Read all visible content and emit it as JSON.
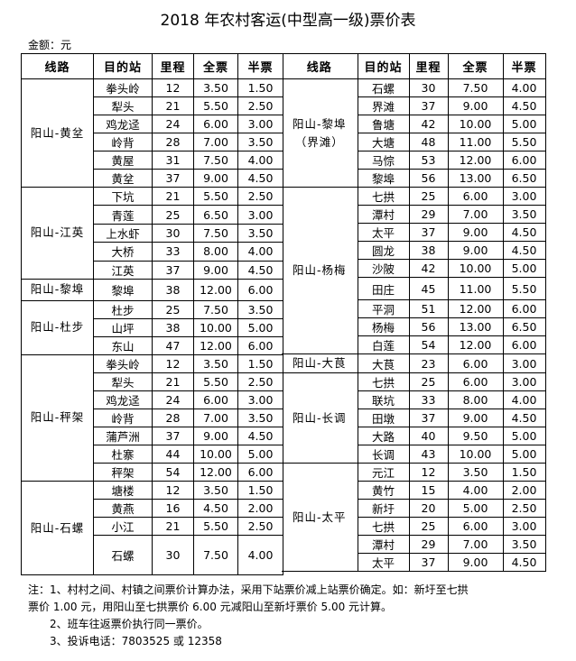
{
  "title": "2018 年农村客运(中型高一级)票价表",
  "unit_label": "金额：元",
  "headers": [
    "线路",
    "目的站",
    "里程",
    "全票",
    "半票"
  ],
  "left_table": [
    {
      "route": "阳山-黄坌",
      "stops": [
        [
          "拳头岭",
          "12",
          "3.50",
          "1.50"
        ],
        [
          "犁头",
          "21",
          "5.50",
          "2.50"
        ],
        [
          "鸡龙迳",
          "24",
          "6.00",
          "3.00"
        ],
        [
          "岭背",
          "28",
          "7.00",
          "3.50"
        ],
        [
          "黄屋",
          "31",
          "7.50",
          "4.00"
        ],
        [
          "黄坌",
          "37",
          "9.00",
          "4.50"
        ]
      ]
    },
    {
      "route": "阳山-江英",
      "stops": [
        [
          "下坑",
          "21",
          "5.50",
          "2.50"
        ],
        [
          "青莲",
          "25",
          "6.50",
          "3.00"
        ],
        [
          "上水虾",
          "30",
          "7.50",
          "3.50"
        ],
        [
          "大桥",
          "33",
          "8.00",
          "4.00"
        ],
        [
          "江英",
          "37",
          "9.00",
          "4.50"
        ]
      ]
    },
    {
      "route": "阳山-黎埠",
      "stops": [
        [
          "黎埠",
          "38",
          "12.00",
          "6.00"
        ]
      ]
    },
    {
      "route": "阳山-杜步",
      "stops": [
        [
          "杜步",
          "25",
          "7.50",
          "3.50"
        ],
        [
          "山坪",
          "38",
          "10.00",
          "5.00"
        ],
        [
          "东山",
          "47",
          "12.00",
          "6.00"
        ]
      ]
    },
    {
      "route": "阳山-秤架",
      "stops": [
        [
          "拳头岭",
          "12",
          "3.50",
          "1.50"
        ],
        [
          "犁头",
          "21",
          "5.50",
          "2.50"
        ],
        [
          "鸡龙迳",
          "24",
          "6.00",
          "3.00"
        ],
        [
          "岭背",
          "28",
          "7.00",
          "3.50"
        ],
        [
          "蒲芦洲",
          "37",
          "9.00",
          "4.50"
        ],
        [
          "杜寨",
          "44",
          "10.00",
          "5.00"
        ],
        [
          "秤架",
          "54",
          "12.00",
          "6.00"
        ]
      ]
    },
    {
      "route": "阳山-石螺",
      "stops": [
        [
          "塘楼",
          "12",
          "3.50",
          "1.50"
        ],
        [
          "黄燕",
          "16",
          "4.50",
          "2.00"
        ],
        [
          "小江",
          "21",
          "5.50",
          "2.50"
        ],
        [
          "石螺",
          "30",
          "7.50",
          "4.00"
        ]
      ]
    }
  ],
  "right_table": [
    {
      "route": "阳山-黎埠（界滩）",
      "stops": [
        [
          "石螺",
          "30",
          "7.50",
          "4.00"
        ],
        [
          "界滩",
          "37",
          "9.00",
          "4.50"
        ],
        [
          "鲁塘",
          "42",
          "10.00",
          "5.00"
        ],
        [
          "大塘",
          "48",
          "11.00",
          "5.50"
        ],
        [
          "马悰",
          "53",
          "12.00",
          "6.00"
        ],
        [
          "黎埠",
          "56",
          "13.00",
          "6.50"
        ]
      ]
    },
    {
      "route": "阳山-杨梅",
      "stops": [
        [
          "七拱",
          "25",
          "6.00",
          "3.00"
        ],
        [
          "潭村",
          "29",
          "7.00",
          "3.50"
        ],
        [
          "太平",
          "37",
          "9.00",
          "4.50"
        ],
        [
          "圆龙",
          "38",
          "9.00",
          "4.50"
        ],
        [
          "沙陂",
          "42",
          "10.00",
          "5.00"
        ],
        [
          "田庄",
          "45",
          "11.00",
          "5.50"
        ],
        [
          "平洞",
          "51",
          "12.00",
          "6.00"
        ],
        [
          "杨梅",
          "56",
          "13.00",
          "6.50"
        ],
        [
          "白莲",
          "54",
          "12.00",
          "6.00"
        ]
      ]
    },
    {
      "route": "阳山-大茛",
      "stops": [
        [
          "大茛",
          "23",
          "6.00",
          "3.00"
        ]
      ]
    },
    {
      "route": "阳山-长调",
      "stops": [
        [
          "七拱",
          "25",
          "6.00",
          "3.00"
        ],
        [
          "联坑",
          "33",
          "8.00",
          "4.00"
        ],
        [
          "田墩",
          "37",
          "9.00",
          "4.50"
        ],
        [
          "大路",
          "40",
          "9.50",
          "5.00"
        ],
        [
          "长调",
          "43",
          "10.00",
          "5.00"
        ]
      ]
    },
    {
      "route": "阳山-太平",
      "stops": [
        [
          "元江",
          "12",
          "3.50",
          "1.50"
        ],
        [
          "黄竹",
          "15",
          "4.00",
          "2.00"
        ],
        [
          "新圩",
          "20",
          "5.00",
          "2.50"
        ],
        [
          "七拱",
          "25",
          "6.00",
          "3.00"
        ],
        [
          "潭村",
          "29",
          "7.00",
          "3.50"
        ],
        [
          "太平",
          "37",
          "9.00",
          "4.50"
        ]
      ]
    }
  ],
  "notes": {
    "note1_line1": "注：1、村村之间、村镇之间票价计算办法，采用下站票价减上站票价确定。如：新圩至七拱",
    "note1_line2": "票价 1.00 元，用阳山至七拱票价 6.00 元减阳山至新圩票价 5.00 元计算。",
    "note2": "2、班车往返票价执行同一票价。",
    "note3": "3、投诉电话：7803525 或 12358"
  }
}
